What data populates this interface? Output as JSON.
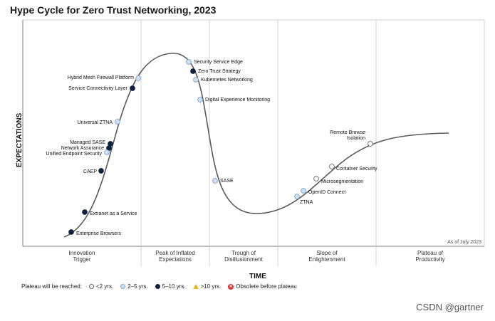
{
  "title": "Hype Cycle for Zero Trust Networking, 2023",
  "chart_data": {
    "type": "scatter",
    "title": "Hype Cycle for Zero Trust Networking, 2023",
    "xlabel": "TIME",
    "ylabel": "EXPECTATIONS",
    "as_of": "As of July 2023",
    "phases": [
      "Innovation\nTrigger",
      "Peak of Inflated\nExpectations",
      "Trough of\nDisillusionment",
      "Slope of\nEnlightenment",
      "Plateau of\nProductivity"
    ],
    "points": [
      {
        "label": "Hybrid Mesh Firewall Platform",
        "plateau": "2-5 yrs."
      },
      {
        "label": "Service Connectivity Layer",
        "plateau": "5-10 yrs."
      },
      {
        "label": "Universal ZTNA",
        "plateau": "2-5 yrs."
      },
      {
        "label": "Managed SASE",
        "plateau": "5-10 yrs."
      },
      {
        "label": "Network Assurance",
        "plateau": "5-10 yrs."
      },
      {
        "label": "Unified Endpoint Security",
        "plateau": "2-5 yrs."
      },
      {
        "label": "CAEP",
        "plateau": "5-10 yrs."
      },
      {
        "label": "Extranet as a Service",
        "plateau": "5-10 yrs."
      },
      {
        "label": "Enterprise Browsers",
        "plateau": "5-10 yrs."
      },
      {
        "label": "Security Service Edge",
        "plateau": "2-5 yrs."
      },
      {
        "label": "Zero Trust Strategy",
        "plateau": "5-10 yrs."
      },
      {
        "label": "Kubernetes Networking",
        "plateau": "2-5 yrs."
      },
      {
        "label": "Digital Experience Monitoring",
        "plateau": "2-5 yrs."
      },
      {
        "label": "SASE",
        "plateau": "2-5 yrs."
      },
      {
        "label": "ZTNA",
        "plateau": "2-5 yrs."
      },
      {
        "label": "OpenID Connect",
        "plateau": "2-5 yrs."
      },
      {
        "label": "Microsegmentation",
        "plateau": "<2 yrs."
      },
      {
        "label": "Container Security",
        "plateau": "<2 yrs."
      },
      {
        "label": "Remote Browse\nIsolation",
        "plateau": "<2 yrs."
      }
    ],
    "legend": {
      "title": "Plateau will be reached:",
      "items": [
        {
          "label": "<2 yrs."
        },
        {
          "label": "2–5 yrs."
        },
        {
          "label": "5–10 yrs."
        },
        {
          "label": ">10 yrs."
        },
        {
          "label": "Obsolete before plateau"
        }
      ]
    }
  },
  "brand": "CSDN @gartner"
}
